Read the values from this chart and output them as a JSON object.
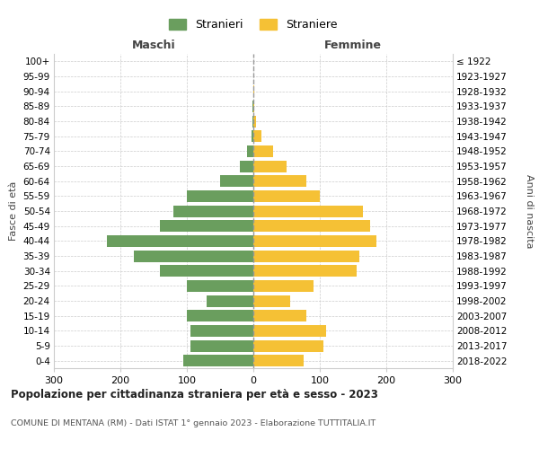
{
  "age_groups": [
    "0-4",
    "5-9",
    "10-14",
    "15-19",
    "20-24",
    "25-29",
    "30-34",
    "35-39",
    "40-44",
    "45-49",
    "50-54",
    "55-59",
    "60-64",
    "65-69",
    "70-74",
    "75-79",
    "80-84",
    "85-89",
    "90-94",
    "95-99",
    "100+"
  ],
  "birth_years": [
    "2018-2022",
    "2013-2017",
    "2008-2012",
    "2003-2007",
    "1998-2002",
    "1993-1997",
    "1988-1992",
    "1983-1987",
    "1978-1982",
    "1973-1977",
    "1968-1972",
    "1963-1967",
    "1958-1962",
    "1953-1957",
    "1948-1952",
    "1943-1947",
    "1938-1942",
    "1933-1937",
    "1928-1932",
    "1923-1927",
    "≤ 1922"
  ],
  "maschi": [
    105,
    95,
    95,
    100,
    70,
    100,
    140,
    180,
    220,
    140,
    120,
    100,
    50,
    20,
    10,
    3,
    2,
    1,
    0,
    0,
    0
  ],
  "femmine": [
    75,
    105,
    110,
    80,
    55,
    90,
    155,
    160,
    185,
    175,
    165,
    100,
    80,
    50,
    30,
    12,
    4,
    2,
    1,
    0,
    0
  ],
  "color_maschi": "#6a9e5e",
  "color_femmine": "#f5c135",
  "title": "Popolazione per cittadinanza straniera per età e sesso - 2023",
  "subtitle": "COMUNE DI MENTANA (RM) - Dati ISTAT 1° gennaio 2023 - Elaborazione TUTTITALIA.IT",
  "ylabel_left": "Fasce di età",
  "ylabel_right": "Anni di nascita",
  "xlabel_maschi": "Maschi",
  "xlabel_femmine": "Femmine",
  "legend_maschi": "Stranieri",
  "legend_femmine": "Straniere",
  "xlim": 300,
  "xticks": [
    -300,
    -200,
    -100,
    0,
    100,
    200,
    300
  ],
  "xticklabels": [
    "300",
    "200",
    "100",
    "0",
    "100",
    "200",
    "300"
  ],
  "background_color": "#ffffff",
  "grid_color": "#cccccc"
}
